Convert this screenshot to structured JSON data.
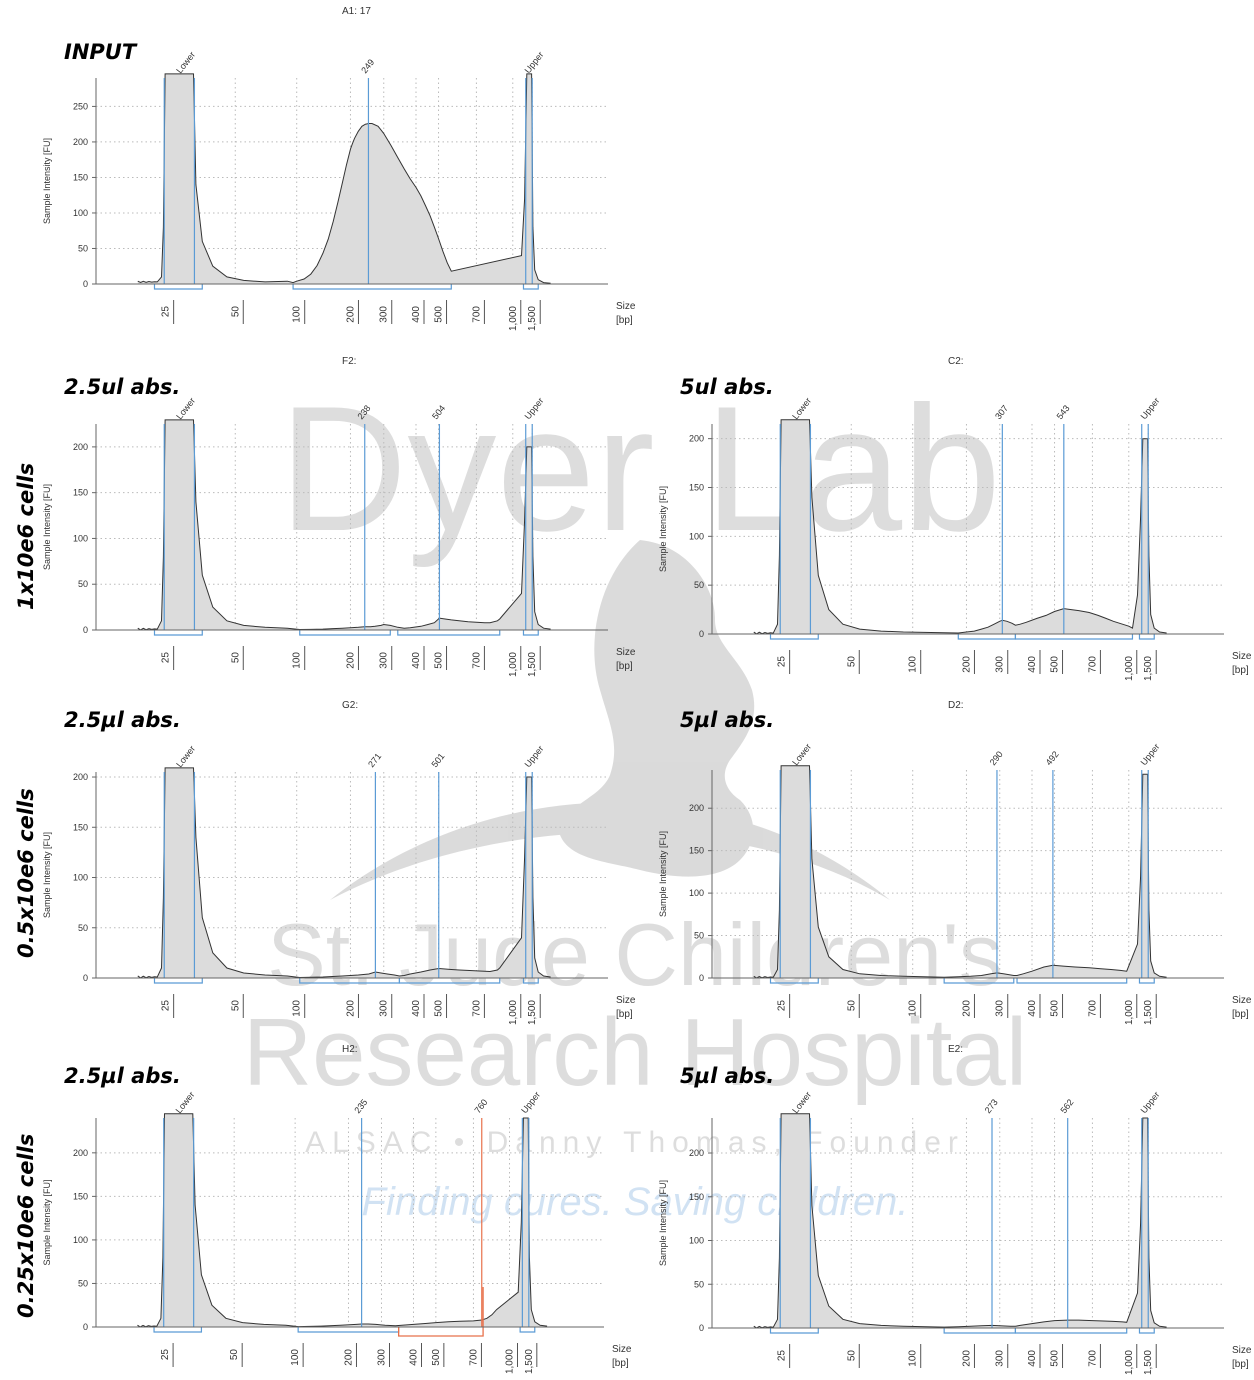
{
  "watermark": {
    "line1": "Dyer Lab",
    "line2": "St. Jude Children's",
    "line3": "Research Hospital",
    "line4": "ALSAC • Danny Thomas, Founder",
    "line5": "Finding cures. Saving children."
  },
  "row_labels": [
    "1x10e6 cells",
    "0.5x10e6 cells",
    "0.25x10e6 cells"
  ],
  "common": {
    "ylabel": "Sample Intensity [FU]",
    "xlabel_line1": "Size",
    "xlabel_line2": "[bp]",
    "x_ticks": [
      "25",
      "50",
      "100",
      "200",
      "300",
      "400",
      "500",
      "700",
      "1,000",
      "1,500"
    ],
    "lower_label": "Lower",
    "upper_label": "Upper",
    "line_color": "#333333",
    "fill_color": "#dcdcdc",
    "marker_color": "#5b9bd5",
    "region_color": "#5b9bd5",
    "highlight_color": "#e8704a"
  },
  "chart_data": [
    {
      "id": "input",
      "type": "line",
      "title": "INPUT",
      "well": "A1: 17",
      "y_ticks": [
        0,
        50,
        100,
        150,
        200,
        250
      ],
      "ylim": [
        0,
        290
      ],
      "lower_height": 400,
      "upper_height": 400,
      "baseline": 3,
      "series": [
        {
          "x": [
            96,
            100,
            110,
            120,
            130,
            140,
            150,
            160,
            170,
            180,
            190,
            200,
            205,
            210,
            220,
            230,
            240,
            250,
            260,
            280,
            300,
            320,
            340,
            360,
            380,
            400,
            420,
            440,
            460,
            480,
            500,
            520,
            540,
            560
          ],
          "y": [
            2,
            4,
            7,
            14,
            26,
            43,
            63,
            88,
            115,
            142,
            168,
            190,
            198,
            205,
            215,
            222,
            225,
            226,
            226,
            222,
            212,
            195,
            178,
            162,
            148,
            136,
            124,
            110,
            96,
            80,
            64,
            46,
            30,
            18
          ]
        }
      ],
      "peak_markers": [
        {
          "label": "249",
          "x": 249
        }
      ],
      "regions": [
        {
          "x0": 96,
          "x1": 560
        }
      ],
      "highlight": null
    },
    {
      "id": "f2",
      "type": "line",
      "title": "2.5ul abs.",
      "well": "F2:",
      "y_ticks": [
        0,
        50,
        100,
        150,
        200
      ],
      "ylim": [
        0,
        225
      ],
      "lower_height": 300,
      "upper_height": 200,
      "baseline": 1,
      "series": [
        {
          "x": [
            104,
            120,
            140,
            160,
            180,
            200,
            220,
            238,
            255,
            270,
            290,
            300,
            318,
            340,
            360,
            380,
            420,
            450,
            480,
            504,
            530,
            560,
            600,
            650,
            700,
            760,
            800,
            860,
            880
          ],
          "y": [
            0.5,
            0.7,
            1,
            1.5,
            2,
            2.5,
            3,
            3.5,
            3.5,
            4,
            5,
            6,
            5,
            3,
            2,
            2.5,
            4,
            6,
            8,
            13,
            12,
            11,
            10,
            9,
            8.5,
            8,
            8,
            10,
            12
          ]
        }
      ],
      "peak_markers": [
        {
          "label": "238",
          "x": 238
        },
        {
          "label": "504",
          "x": 504
        }
      ],
      "regions": [
        {
          "x0": 104,
          "x1": 318
        },
        {
          "x0": 340,
          "x1": 880
        }
      ],
      "highlight": null
    },
    {
      "id": "c2",
      "type": "line",
      "title": "5ul abs.",
      "well": "C2:",
      "y_ticks": [
        0,
        50,
        100,
        150,
        200
      ],
      "ylim": [
        0,
        215
      ],
      "lower_height": 300,
      "upper_height": 200,
      "baseline": 1,
      "series": [
        {
          "x": [
            180,
            200,
            220,
            240,
            260,
            280,
            300,
            307,
            320,
            335,
            345,
            360,
            380,
            420,
            460,
            500,
            543,
            580,
            620,
            680,
            740,
            800,
            860,
            940,
            1000,
            1080
          ],
          "y": [
            1,
            2,
            3,
            5,
            7,
            10,
            13,
            14,
            13,
            11,
            9,
            10,
            12,
            16,
            19,
            23,
            26,
            25,
            24,
            22,
            19,
            16,
            13,
            10,
            8,
            6
          ]
        }
      ],
      "peak_markers": [
        {
          "label": "307",
          "x": 307
        },
        {
          "label": "543",
          "x": 543
        }
      ],
      "regions": [
        {
          "x0": 180,
          "x1": 345
        },
        {
          "x0": 345,
          "x1": 1080
        }
      ],
      "highlight": null
    },
    {
      "id": "g2",
      "type": "line",
      "title": "2.5µl abs.",
      "well": "G2:",
      "y_ticks": [
        0,
        50,
        100,
        150,
        200
      ],
      "ylim": [
        0,
        205
      ],
      "lower_height": 300,
      "upper_height": 200,
      "baseline": 1,
      "series": [
        {
          "x": [
            104,
            140,
            180,
            220,
            250,
            271,
            290,
            310,
            330,
            345,
            360,
            380,
            420,
            460,
            501,
            530,
            560,
            600,
            660,
            720,
            800,
            860,
            880
          ],
          "y": [
            0.5,
            1,
            2,
            3,
            4,
            6,
            5,
            4,
            3,
            2,
            2.5,
            4,
            6,
            8,
            9.5,
            9,
            8.5,
            8,
            7.5,
            7,
            6.5,
            8,
            10
          ]
        }
      ],
      "peak_markers": [
        {
          "label": "271",
          "x": 271
        },
        {
          "label": "501",
          "x": 501
        }
      ],
      "regions": [
        {
          "x0": 104,
          "x1": 345
        },
        {
          "x0": 345,
          "x1": 880
        }
      ],
      "highlight": null
    },
    {
      "id": "d2",
      "type": "line",
      "title": "5µl abs.",
      "well": "D2:",
      "y_ticks": [
        0,
        50,
        100,
        150,
        200
      ],
      "ylim": [
        0,
        245
      ],
      "lower_height": 300,
      "upper_height": 240,
      "baseline": 1,
      "series": [
        {
          "x": [
            150,
            180,
            210,
            240,
            270,
            290,
            310,
            340,
            350,
            370,
            400,
            450,
            492,
            540,
            600,
            680,
            760,
            840,
            920,
            980
          ],
          "y": [
            1,
            1.5,
            2,
            3,
            5,
            6,
            5,
            3,
            3,
            5,
            8,
            13,
            15,
            14,
            13,
            12,
            11,
            10,
            9,
            8
          ]
        }
      ],
      "peak_markers": [
        {
          "label": "290",
          "x": 290
        },
        {
          "label": "492",
          "x": 492
        }
      ],
      "regions": [
        {
          "x0": 150,
          "x1": 340
        },
        {
          "x0": 350,
          "x1": 980
        }
      ],
      "highlight": null
    },
    {
      "id": "h2",
      "type": "line",
      "title": "2.5µl abs.",
      "well": "H2:",
      "y_ticks": [
        0,
        50,
        100,
        150,
        200
      ],
      "ylim": [
        0,
        240
      ],
      "lower_height": 300,
      "upper_height": 240,
      "baseline": 1,
      "series": [
        {
          "x": [
            104,
            140,
            180,
            220,
            235,
            255,
            280,
            310,
            340,
            360,
            400,
            450,
            500,
            560,
            620,
            700,
            760,
            800,
            840,
            880
          ],
          "y": [
            0.5,
            1,
            2,
            3,
            3.5,
            3.5,
            3,
            2,
            1.5,
            2,
            3,
            4,
            5,
            6,
            6.5,
            7,
            8,
            10,
            14,
            20
          ]
        }
      ],
      "peak_markers": [
        {
          "label": "235",
          "x": 235
        },
        {
          "label": "760",
          "x": 760
        }
      ],
      "regions": [
        {
          "x0": 104,
          "x1": 350
        }
      ],
      "highlight": {
        "x0": 350,
        "x1": 770
      }
    },
    {
      "id": "e2",
      "type": "line",
      "title": "5µl abs.",
      "well": "E2:",
      "y_ticks": [
        0,
        50,
        100,
        150,
        200
      ],
      "ylim": [
        0,
        240
      ],
      "lower_height": 300,
      "upper_height": 240,
      "baseline": 1,
      "series": [
        {
          "x": [
            150,
            180,
            210,
            240,
            273,
            300,
            330,
            345,
            360,
            400,
            450,
            500,
            562,
            620,
            700,
            780,
            860,
            940,
            980
          ],
          "y": [
            1,
            1.5,
            2,
            2.5,
            3,
            2.5,
            2,
            2,
            3,
            5,
            7,
            8.5,
            9,
            9,
            8.5,
            8,
            7.5,
            7,
            6.5
          ]
        }
      ],
      "peak_markers": [
        {
          "label": "273",
          "x": 273
        },
        {
          "label": "562",
          "x": 562
        }
      ],
      "regions": [
        {
          "x0": 150,
          "x1": 345
        },
        {
          "x0": 345,
          "x1": 980
        }
      ],
      "highlight": null
    }
  ]
}
